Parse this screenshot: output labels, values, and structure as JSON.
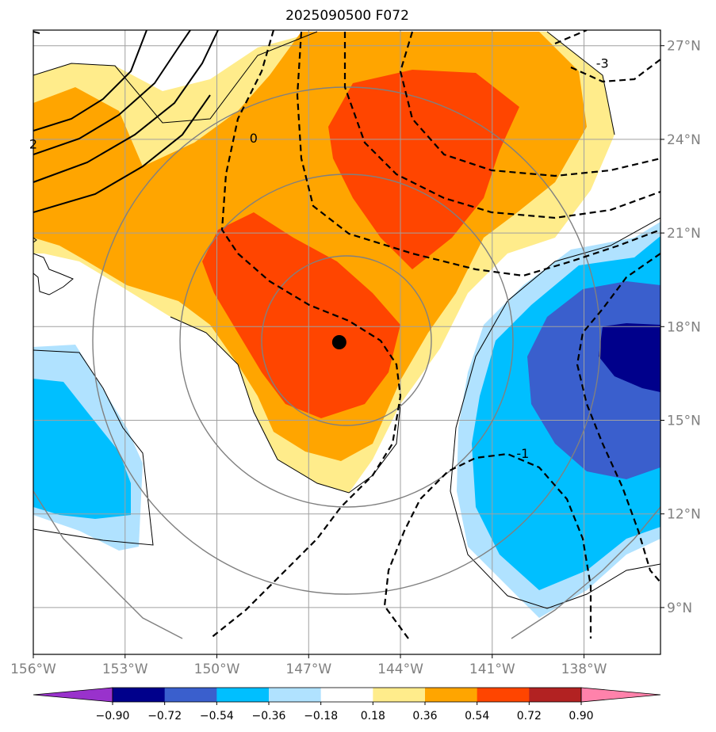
{
  "title": "2025090500 F072",
  "map": {
    "lon_range": [
      -156,
      -135.5
    ],
    "lat_range": [
      7.5,
      27.5
    ],
    "lon_ticks": [
      {
        "value": -156,
        "label": "156°W"
      },
      {
        "value": -153,
        "label": "153°W"
      },
      {
        "value": -150,
        "label": "150°W"
      },
      {
        "value": -147,
        "label": "147°W"
      },
      {
        "value": -144,
        "label": "144°W"
      },
      {
        "value": -141,
        "label": "141°W"
      },
      {
        "value": -138,
        "label": "138°W"
      }
    ],
    "lat_ticks": [
      {
        "value": 9,
        "label": "9°N"
      },
      {
        "value": 12,
        "label": "12°N"
      },
      {
        "value": 15,
        "label": "15°N"
      },
      {
        "value": 18,
        "label": "18°N"
      },
      {
        "value": 21,
        "label": "21°N"
      },
      {
        "value": 24,
        "label": "24°N"
      },
      {
        "value": 27,
        "label": "27°N"
      }
    ],
    "grid": true,
    "storm_center": {
      "lon": -146.0,
      "lat": 17.5
    },
    "contour_labels": [
      {
        "text": "2",
        "lon": -156.0,
        "lat": 23.7
      },
      {
        "text": "0",
        "lon": -148.8,
        "lat": 23.9
      },
      {
        "text": "-1",
        "lon": -140.0,
        "lat": 13.8
      },
      {
        "text": "-3",
        "lon": -137.4,
        "lat": 26.3
      }
    ]
  },
  "colorbar": {
    "levels": [
      "−0.90",
      "−0.72",
      "−0.54",
      "−0.36",
      "−0.18",
      "0.18",
      "0.36",
      "0.54",
      "0.72",
      "0.90"
    ],
    "colors": [
      "#9932cc",
      "#00008b",
      "#3a5fcd",
      "#00bfff",
      "#b0e2ff",
      "#ffffff",
      "#ffec8b",
      "#ffa500",
      "#ff4500",
      "#b22222",
      "#ff82ab"
    ]
  }
}
